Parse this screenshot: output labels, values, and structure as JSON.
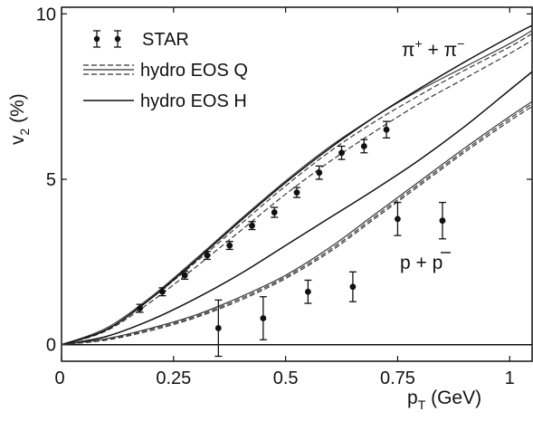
{
  "chart_data": {
    "type": "line",
    "xlabel_main": "p",
    "xlabel_sub": "T",
    "xlabel_unit": " (GeV)",
    "ylabel_main": "v",
    "ylabel_sub": "2",
    "ylabel_unit": " (%)",
    "xlim": [
      0,
      1.05
    ],
    "ylim": [
      -0.5,
      10.2
    ],
    "xticks": [
      0,
      0.25,
      0.5,
      0.75,
      1
    ],
    "xtick_labels": [
      "0",
      "0.25",
      "0.5",
      "0.75",
      "1"
    ],
    "yticks": [
      0,
      5,
      10
    ],
    "ytick_labels": [
      "0",
      "5",
      "10"
    ],
    "grid": false,
    "legend_position": "top-left",
    "legend": {
      "star": "STAR",
      "eos_q": "hydro EOS Q",
      "eos_h": "hydro EOS H"
    },
    "annotations": {
      "pion_main": "π",
      "pion_sup1": "+",
      "pion_plus": " + π",
      "pion_sup2": "−",
      "proton_main": "p + ",
      "proton_bar": "p"
    },
    "series": [
      {
        "group": "star",
        "particle": "pion",
        "style": "markers",
        "points": [
          {
            "x": 0.175,
            "y": 1.1,
            "err": 0.12
          },
          {
            "x": 0.225,
            "y": 1.6,
            "err": 0.12
          },
          {
            "x": 0.275,
            "y": 2.1,
            "err": 0.12
          },
          {
            "x": 0.325,
            "y": 2.7,
            "err": 0.12
          },
          {
            "x": 0.375,
            "y": 3.0,
            "err": 0.12
          },
          {
            "x": 0.425,
            "y": 3.6,
            "err": 0.12
          },
          {
            "x": 0.475,
            "y": 4.0,
            "err": 0.15
          },
          {
            "x": 0.525,
            "y": 4.6,
            "err": 0.15
          },
          {
            "x": 0.575,
            "y": 5.2,
            "err": 0.2
          },
          {
            "x": 0.625,
            "y": 5.8,
            "err": 0.2
          },
          {
            "x": 0.675,
            "y": 6.0,
            "err": 0.2
          },
          {
            "x": 0.725,
            "y": 6.5,
            "err": 0.25
          }
        ]
      },
      {
        "group": "star",
        "particle": "proton",
        "style": "markers",
        "points": [
          {
            "x": 0.35,
            "y": 0.5,
            "err": 0.85
          },
          {
            "x": 0.45,
            "y": 0.8,
            "err": 0.65
          },
          {
            "x": 0.55,
            "y": 1.6,
            "err": 0.35
          },
          {
            "x": 0.65,
            "y": 1.75,
            "err": 0.45
          },
          {
            "x": 0.75,
            "y": 3.8,
            "err": 0.5
          },
          {
            "x": 0.85,
            "y": 3.75,
            "err": 0.55
          }
        ]
      },
      {
        "group": "eos_q",
        "particle": "pion",
        "style": "solid",
        "x": [
          0,
          0.1,
          0.2,
          0.3,
          0.4,
          0.5,
          0.6,
          0.7,
          0.8,
          0.9,
          1.0,
          1.05
        ],
        "y": [
          0,
          0.5,
          1.45,
          2.6,
          3.8,
          4.95,
          6.0,
          6.9,
          7.7,
          8.4,
          9.1,
          9.5
        ]
      },
      {
        "group": "eos_q",
        "particle": "pion",
        "style": "dashed",
        "x": [
          0,
          0.1,
          0.2,
          0.3,
          0.4,
          0.5,
          0.6,
          0.7,
          0.8,
          0.9,
          1.0,
          1.05
        ],
        "y": [
          0,
          0.45,
          1.4,
          2.5,
          3.65,
          4.8,
          5.85,
          6.75,
          7.55,
          8.3,
          9.0,
          9.4
        ]
      },
      {
        "group": "eos_q",
        "particle": "pion",
        "style": "dashed",
        "x": [
          0,
          0.1,
          0.2,
          0.3,
          0.4,
          0.5,
          0.6,
          0.7,
          0.8,
          0.9,
          1.0,
          1.05
        ],
        "y": [
          0,
          0.42,
          1.3,
          2.35,
          3.45,
          4.55,
          5.55,
          6.45,
          7.3,
          8.05,
          8.8,
          9.2
        ]
      },
      {
        "group": "eos_h",
        "particle": "pion",
        "style": "solid",
        "x": [
          0,
          0.1,
          0.2,
          0.3,
          0.4,
          0.5,
          0.6,
          0.7,
          0.8,
          0.9,
          1.0,
          1.05
        ],
        "y": [
          0,
          0.45,
          1.4,
          2.55,
          3.75,
          4.9,
          5.95,
          6.9,
          7.75,
          8.55,
          9.3,
          9.65
        ]
      },
      {
        "group": "eos_h",
        "particle": "proton",
        "style": "solid",
        "x": [
          0,
          0.1,
          0.2,
          0.3,
          0.4,
          0.5,
          0.6,
          0.7,
          0.8,
          0.9,
          1.0,
          1.05
        ],
        "y": [
          0,
          0.25,
          0.75,
          1.4,
          2.15,
          3.0,
          3.85,
          4.7,
          5.6,
          6.6,
          7.7,
          8.25
        ]
      },
      {
        "group": "eos_q",
        "particle": "proton",
        "style": "solid",
        "x": [
          0,
          0.1,
          0.2,
          0.3,
          0.4,
          0.5,
          0.6,
          0.7,
          0.8,
          0.9,
          1.0,
          1.05
        ],
        "y": [
          0,
          0.18,
          0.5,
          0.9,
          1.45,
          2.1,
          2.95,
          3.95,
          4.95,
          5.95,
          6.9,
          7.35
        ]
      },
      {
        "group": "eos_q",
        "particle": "proton",
        "style": "dashed",
        "x": [
          0,
          0.1,
          0.2,
          0.3,
          0.4,
          0.5,
          0.6,
          0.7,
          0.8,
          0.9,
          1.0,
          1.05
        ],
        "y": [
          0,
          0.16,
          0.47,
          0.86,
          1.4,
          2.05,
          2.88,
          3.88,
          4.88,
          5.88,
          6.83,
          7.28
        ]
      },
      {
        "group": "eos_q",
        "particle": "proton",
        "style": "dashed",
        "x": [
          0,
          0.1,
          0.2,
          0.3,
          0.4,
          0.5,
          0.6,
          0.7,
          0.8,
          0.9,
          1.0,
          1.05
        ],
        "y": [
          0,
          0.14,
          0.43,
          0.82,
          1.35,
          2.0,
          2.82,
          3.82,
          4.82,
          5.82,
          6.76,
          7.2
        ]
      }
    ]
  }
}
